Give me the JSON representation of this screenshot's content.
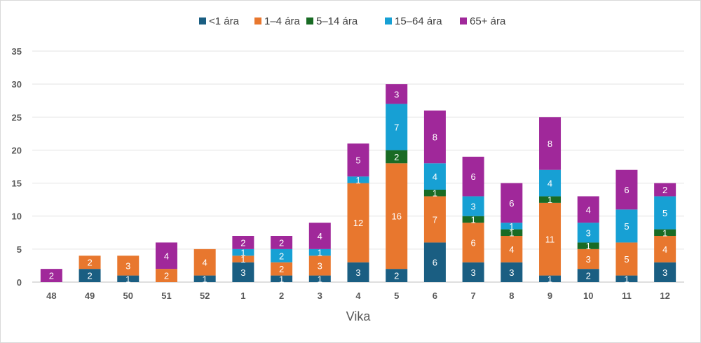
{
  "chart_data": {
    "type": "bar",
    "stacked": true,
    "title": "",
    "xlabel": "Vika",
    "ylabel": "",
    "ylim": [
      0,
      35
    ],
    "yticks": [
      0,
      5,
      10,
      15,
      20,
      25,
      30,
      35
    ],
    "grid": true,
    "legend_position": "top-center",
    "categories": [
      "48",
      "49",
      "50",
      "51",
      "52",
      "1",
      "2",
      "3",
      "4",
      "5",
      "6",
      "7",
      "8",
      "9",
      "10",
      "11",
      "12"
    ],
    "series": [
      {
        "name": "<1 ára",
        "color": "#1a5e82",
        "values": [
          0,
          2,
          1,
          0,
          1,
          3,
          1,
          1,
          3,
          2,
          6,
          3,
          3,
          1,
          2,
          1,
          3
        ]
      },
      {
        "name": "1–4 ára",
        "color": "#e8772e",
        "values": [
          0,
          2,
          3,
          2,
          4,
          1,
          2,
          3,
          12,
          16,
          7,
          6,
          4,
          11,
          3,
          5,
          4
        ]
      },
      {
        "name": "5–14 ára",
        "color": "#196b24",
        "values": [
          0,
          0,
          0,
          0,
          0,
          0,
          0,
          0,
          0,
          2,
          1,
          1,
          1,
          1,
          1,
          0,
          1
        ]
      },
      {
        "name": "15–64 ára",
        "color": "#17a0d4",
        "values": [
          0,
          0,
          0,
          0,
          0,
          1,
          2,
          1,
          1,
          7,
          4,
          3,
          1,
          4,
          3,
          5,
          5
        ]
      },
      {
        "name": "65+ ára",
        "color": "#a0289a",
        "values": [
          2,
          0,
          0,
          4,
          0,
          2,
          2,
          4,
          5,
          3,
          8,
          6,
          6,
          8,
          4,
          6,
          2
        ]
      }
    ]
  }
}
